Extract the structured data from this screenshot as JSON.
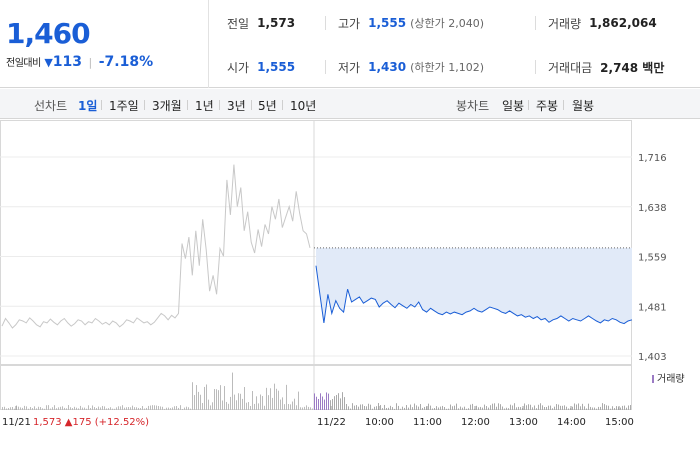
{
  "quote": {
    "price": "1,460",
    "change_label": "전일대비",
    "change_amount": "113",
    "change_pct": "-7.18%",
    "down_color": "#1a5ed6"
  },
  "stats": {
    "prev_close": {
      "label": "전일",
      "value": "1,573"
    },
    "high": {
      "label": "고가",
      "value": "1,555",
      "sub": "(상한가 2,040)"
    },
    "volume": {
      "label": "거래량",
      "value": "1,862,064"
    },
    "open": {
      "label": "시가",
      "value": "1,555"
    },
    "low": {
      "label": "저가",
      "value": "1,430",
      "sub": "(하한가 1,102)"
    },
    "trade_value": {
      "label": "거래대금",
      "value": "2,748 백만"
    }
  },
  "period_tabs": {
    "label": "선차트",
    "items": [
      "1일",
      "1주일",
      "3개월",
      "1년",
      "3년",
      "5년",
      "10년"
    ],
    "active": "1일"
  },
  "candle_tabs": {
    "label": "봉차트",
    "items": [
      "일봉",
      "주봉",
      "월봉"
    ]
  },
  "chart_data": {
    "type": "line",
    "y_ticks": [
      "1,716",
      "1,638",
      "1,559",
      "1,481",
      "1,403"
    ],
    "y_range": [
      1403,
      1716
    ],
    "x_ticks": [
      "11/21",
      "11/22",
      "10:00",
      "11:00",
      "12:00",
      "13:00",
      "14:00",
      "15:00"
    ],
    "prev_day": {
      "date": "11/21",
      "close": "1,573",
      "change": "175",
      "change_pct": "(+12.52%)",
      "color": "#d6262b",
      "line_color": "#c8c8c8",
      "prices": [
        1450,
        1462,
        1455,
        1447,
        1452,
        1460,
        1458,
        1455,
        1463,
        1458,
        1452,
        1449,
        1457,
        1455,
        1461,
        1456,
        1452,
        1458,
        1462,
        1455,
        1450,
        1454,
        1460,
        1458,
        1452,
        1457,
        1455,
        1462,
        1458,
        1453,
        1456,
        1452,
        1458,
        1455,
        1449,
        1453,
        1460,
        1458,
        1455,
        1463,
        1459,
        1455,
        1457,
        1452,
        1456,
        1463,
        1470,
        1466,
        1460,
        1467,
        1463,
        1470,
        1580,
        1556,
        1590,
        1530,
        1600,
        1545,
        1618,
        1570,
        1505,
        1530,
        1500,
        1572,
        1560,
        1680,
        1625,
        1704,
        1638,
        1668,
        1600,
        1630,
        1582,
        1565,
        1602,
        1575,
        1610,
        1595,
        1638,
        1618,
        1650,
        1605,
        1622,
        1638,
        1615,
        1662,
        1628,
        1600,
        1595,
        1573
      ]
    },
    "today": {
      "date": "11/22",
      "line_color": "#1a5ed6",
      "fill_color": "#e1eaf8",
      "prev_close_line": 1573,
      "prices": [
        1545,
        1500,
        1455,
        1500,
        1470,
        1490,
        1478,
        1472,
        1508,
        1488,
        1492,
        1496,
        1486,
        1490,
        1494,
        1492,
        1480,
        1486,
        1490,
        1484,
        1479,
        1486,
        1482,
        1478,
        1484,
        1480,
        1488,
        1476,
        1472,
        1478,
        1474,
        1470,
        1468,
        1472,
        1469,
        1472,
        1470,
        1468,
        1472,
        1474,
        1478,
        1474,
        1472,
        1476,
        1480,
        1478,
        1476,
        1472,
        1470,
        1474,
        1470,
        1466,
        1468,
        1464,
        1466,
        1462,
        1465,
        1460,
        1462,
        1456,
        1460,
        1462,
        1466,
        1462,
        1458,
        1462,
        1460,
        1458,
        1462,
        1466,
        1462,
        1458,
        1455,
        1460,
        1458,
        1462,
        1460,
        1456,
        1454,
        1458,
        1460
      ],
      "tick_positions": [
        0,
        10,
        20,
        30,
        40,
        50,
        60,
        70
      ]
    },
    "volume_legend": "거래량"
  }
}
